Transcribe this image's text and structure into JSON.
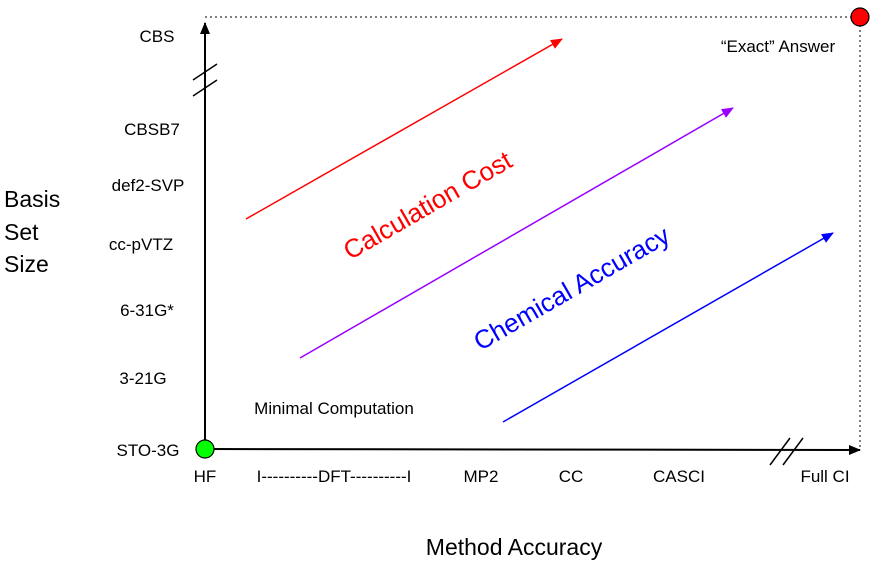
{
  "y_axis": {
    "title_lines": [
      "Basis",
      "Set",
      "Size"
    ],
    "ticks": [
      "CBS",
      "CBSB7",
      "def2-SVP",
      "cc-pVTZ",
      "6-31G*",
      "3-21G",
      "STO-3G"
    ]
  },
  "x_axis": {
    "title": "Method Accuracy",
    "ticks": [
      "HF",
      "I----------DFT----------I",
      "MP2",
      "CC",
      "CASCI",
      "Full CI"
    ]
  },
  "annotations": {
    "exact_answer": "“Exact” Answer",
    "minimal": "Minimal Computation",
    "cost": "Calculation Cost",
    "accuracy": "Chemical Accuracy"
  },
  "colors": {
    "cost_arrow": "#ff0000",
    "middle_arrow": "#9900ff",
    "accuracy_arrow": "#0000ff",
    "origin_point": "#00ff00",
    "exact_point": "#ff0000",
    "axis": "#000000"
  }
}
